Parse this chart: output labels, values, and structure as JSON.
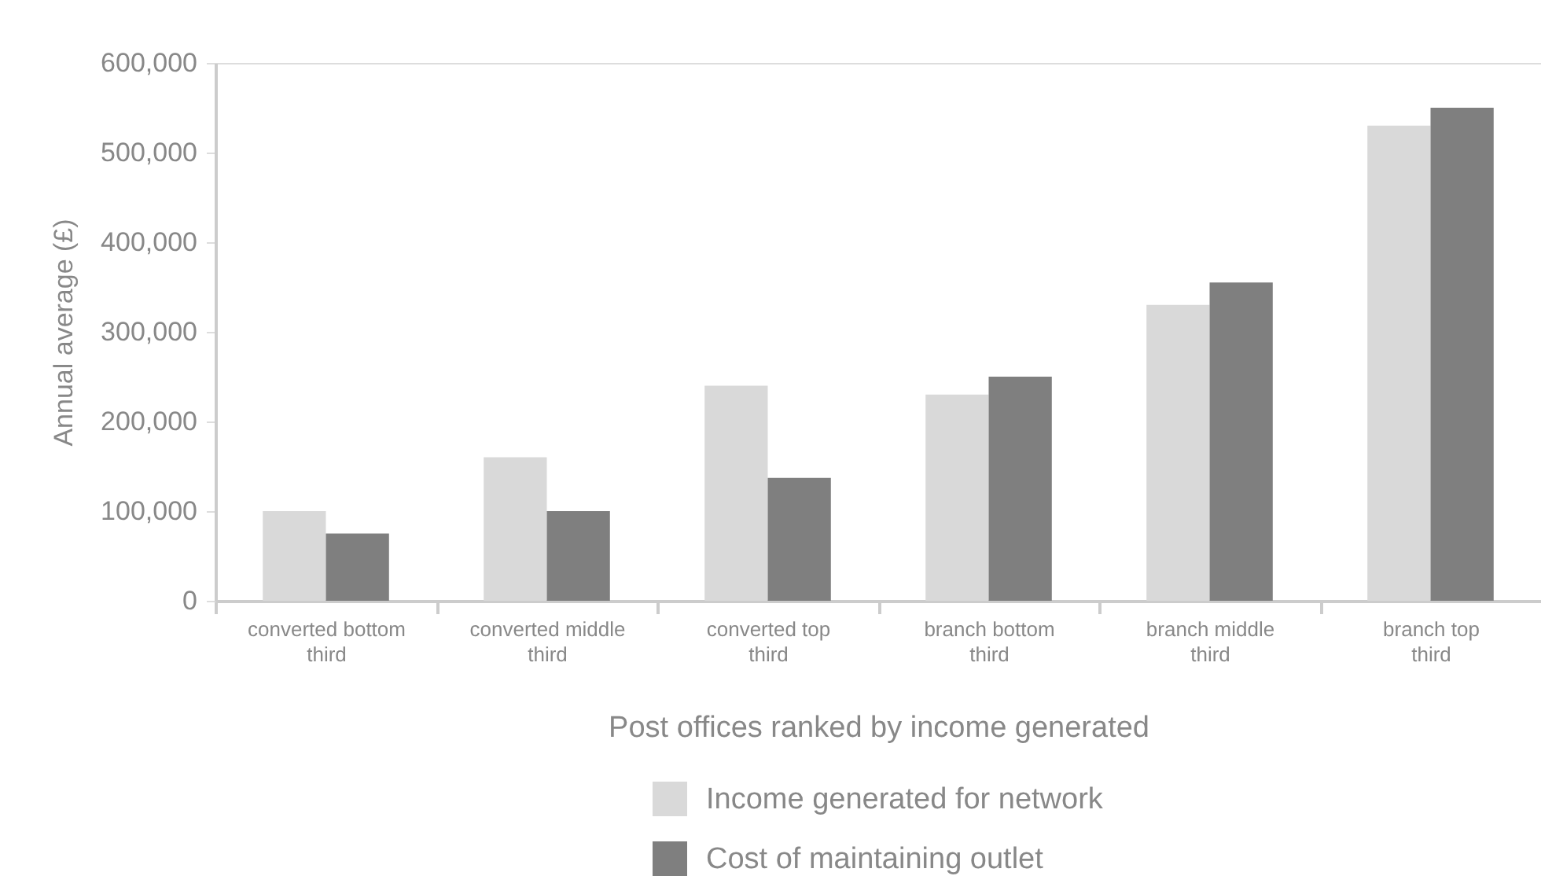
{
  "chart_data": {
    "type": "bar",
    "xlabel": "Post offices ranked by income generated",
    "ylabel": "Annual average (£)",
    "categories": [
      "converted bottom third",
      "converted middle third",
      "converted top third",
      "branch bottom third",
      "branch middle third",
      "branch top third"
    ],
    "series": [
      {
        "name": "Income generated for network",
        "color": "#d9d9d9",
        "values": [
          100000,
          160000,
          240000,
          230000,
          330000,
          530000
        ]
      },
      {
        "name": "Cost of maintaining outlet",
        "color": "#7f7f7f",
        "values": [
          75000,
          100000,
          137000,
          250000,
          355000,
          550000
        ]
      }
    ],
    "ylim": [
      0,
      600000
    ],
    "yticks": [
      0,
      {
        "value": 100000,
        "label": "100,000"
      },
      {
        "value": 200000,
        "label": "200,000"
      },
      {
        "value": 300000,
        "label": "300,000"
      },
      {
        "value": 400000,
        "label": "400,000"
      },
      {
        "value": 500000,
        "label": "500,000"
      },
      {
        "value": 600000,
        "label": "600,000"
      }
    ],
    "legend": "bottom"
  }
}
